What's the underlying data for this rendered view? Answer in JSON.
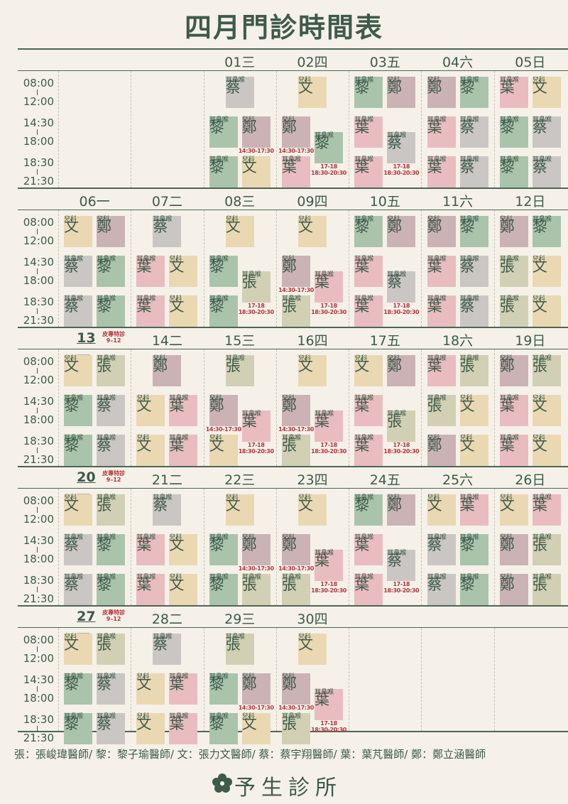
{
  "title": "四月門診時間表",
  "times": [
    "08:00",
    "12:00",
    "14:30",
    "18:00",
    "18:30",
    "21:30"
  ],
  "colors": {
    "蔡": "#c9c6c3",
    "文": "#ead8b3",
    "黎": "#a9c4ab",
    "鄭": "#cbb2b5",
    "葉": "#e9bcbf",
    "張": "#d1d0b4"
  },
  "weeks": [
    {
      "days": [
        null,
        null,
        {
          "label": "01三",
          "morning": [
            [
              "蔡",
              "耳鼻喉"
            ]
          ],
          "afternoon": [
            [
              "黎",
              "耳鼻喉"
            ],
            [
              "鄭",
              "兒科",
              "14:30-17:30"
            ]
          ],
          "evening": [
            [
              "黎",
              "耳鼻喉"
            ],
            [
              "文",
              "兒科"
            ]
          ]
        },
        {
          "label": "02四",
          "morning": [
            [
              "文",
              "兒科"
            ]
          ],
          "afternoon": [
            [
              "鄭",
              "兒科",
              "14:30-17:30"
            ]
          ],
          "span": [
            [
              "黎",
              "耳鼻喉",
              "17-18",
              "18:30-20:30"
            ]
          ],
          "evening": [
            [
              "葉",
              "耳鼻喉"
            ]
          ]
        },
        {
          "label": "03五",
          "morning": [
            [
              "黎",
              "耳鼻喉"
            ],
            [
              "鄭",
              "兒科"
            ]
          ],
          "afternoon": [
            [
              "葉",
              "耳鼻喉"
            ]
          ],
          "span": [
            [
              "蔡",
              "耳鼻喉",
              "17-18",
              "18:30-20:30"
            ]
          ],
          "evening": [
            [
              "葉",
              "耳鼻喉"
            ]
          ]
        },
        {
          "label": "04六",
          "morning": [
            [
              "鄭",
              "兒科"
            ],
            [
              "黎",
              "耳鼻喉"
            ]
          ],
          "afternoon": [
            [
              "葉",
              "耳鼻喉"
            ],
            [
              "蔡",
              "耳鼻喉"
            ]
          ],
          "evening": [
            [
              "葉",
              "耳鼻喉"
            ],
            [
              "蔡",
              "耳鼻喉"
            ]
          ]
        },
        {
          "label": "05日",
          "morning": [
            [
              "葉",
              "耳鼻喉"
            ],
            [
              "文",
              "兒科"
            ]
          ],
          "afternoon": [
            [
              "黎",
              "耳鼻喉"
            ],
            [
              "蔡",
              "耳鼻喉"
            ]
          ],
          "evening": [
            [
              "黎",
              "耳鼻喉"
            ],
            [
              "蔡",
              "耳鼻喉"
            ]
          ]
        }
      ]
    },
    {
      "days": [
        {
          "label": "06一",
          "morning": [
            [
              "文",
              "兒科"
            ],
            [
              "鄭",
              "兒科"
            ]
          ],
          "afternoon": [
            [
              "蔡",
              "耳鼻喉"
            ],
            [
              "黎",
              "耳鼻喉"
            ]
          ],
          "evening": [
            [
              "蔡",
              "耳鼻喉"
            ],
            [
              "黎",
              "耳鼻喉"
            ]
          ]
        },
        {
          "label": "07二",
          "morning": [
            [
              "蔡",
              "耳鼻喉"
            ]
          ],
          "afternoon": [
            [
              "葉",
              "耳鼻喉"
            ],
            [
              "文",
              "兒科"
            ]
          ],
          "evening": [
            [
              "葉",
              "耳鼻喉"
            ],
            [
              "文",
              "兒科"
            ]
          ]
        },
        {
          "label": "08三",
          "morning": [
            [
              "文",
              "兒科"
            ]
          ],
          "afternoon": [
            [
              "黎",
              "耳鼻喉"
            ]
          ],
          "span": [
            [
              "張",
              "耳鼻喉",
              "17-18",
              "18:30-20:30"
            ]
          ],
          "evening": [
            [
              "黎",
              "耳鼻喉"
            ]
          ]
        },
        {
          "label": "09四",
          "morning": [
            [
              "文",
              "兒科"
            ]
          ],
          "afternoon": [
            [
              "鄭",
              "兒科",
              "14:30-17:30"
            ]
          ],
          "span": [
            [
              "葉",
              "耳鼻喉",
              "17-18",
              "18:30-20:30"
            ]
          ],
          "evening": [
            [
              "張",
              "耳鼻喉"
            ]
          ]
        },
        {
          "label": "10五",
          "morning": [
            [
              "黎",
              "耳鼻喉"
            ],
            [
              "鄭",
              "兒科"
            ]
          ],
          "afternoon": [
            [
              "葉",
              "耳鼻喉"
            ]
          ],
          "span": [
            [
              "蔡",
              "耳鼻喉",
              "17-18",
              "18:30-20:30"
            ]
          ],
          "evening": [
            [
              "葉",
              "耳鼻喉"
            ]
          ]
        },
        {
          "label": "11六",
          "morning": [
            [
              "鄭",
              "兒科"
            ],
            [
              "黎",
              "耳鼻喉"
            ]
          ],
          "afternoon": [
            [
              "葉",
              "耳鼻喉"
            ],
            [
              "蔡",
              "耳鼻喉"
            ]
          ],
          "evening": [
            [
              "葉",
              "耳鼻喉"
            ],
            [
              "蔡",
              "耳鼻喉"
            ]
          ]
        },
        {
          "label": "12日",
          "morning": [
            [
              "鄭",
              "兒科"
            ],
            [
              "黎",
              "耳鼻喉"
            ]
          ],
          "afternoon": [
            [
              "張",
              "耳鼻喉"
            ],
            [
              "文",
              "兒科"
            ]
          ],
          "evening": [
            [
              "張",
              "耳鼻喉"
            ],
            [
              "文",
              "兒科"
            ]
          ]
        }
      ]
    },
    {
      "days": [
        {
          "label": "13一",
          "note": [
            "皮專特診",
            "9–12"
          ],
          "morning": [
            [
              "文",
              "兒科"
            ],
            [
              "張",
              "耳鼻喉"
            ]
          ],
          "afternoon": [
            [
              "黎",
              "耳鼻喉"
            ],
            [
              "蔡",
              "耳鼻喉"
            ]
          ],
          "evening": [
            [
              "黎",
              "耳鼻喉"
            ],
            [
              "蔡",
              "耳鼻喉"
            ]
          ]
        },
        {
          "label": "14二",
          "morning": [
            [
              "鄭",
              "兒科"
            ]
          ],
          "afternoon": [
            [
              "文",
              "兒科"
            ],
            [
              "葉",
              "耳鼻喉"
            ]
          ],
          "evening": [
            [
              "文",
              "兒科"
            ],
            [
              "葉",
              "耳鼻喉"
            ]
          ]
        },
        {
          "label": "15三",
          "morning": [
            [
              "張",
              "耳鼻喉"
            ]
          ],
          "afternoon": [
            [
              "鄭",
              "兒科",
              "14:30-17:30"
            ]
          ],
          "span": [
            [
              "葉",
              "耳鼻喉",
              "17-18",
              "18:30-20:30"
            ]
          ],
          "evening": [
            [
              "文",
              "兒科"
            ]
          ]
        },
        {
          "label": "16四",
          "morning": [
            [
              "文",
              "兒科"
            ]
          ],
          "afternoon": [
            [
              "鄭",
              "兒科",
              "14:30-17:30"
            ]
          ],
          "span": [
            [
              "葉",
              "耳鼻喉",
              "17-18",
              "18:30-20:30"
            ]
          ],
          "evening": [
            [
              "張",
              "耳鼻喉"
            ]
          ]
        },
        {
          "label": "17五",
          "morning": [
            [
              "文",
              "兒科"
            ],
            [
              "鄭",
              "兒科"
            ]
          ],
          "afternoon": [
            [
              "葉",
              "耳鼻喉"
            ]
          ],
          "span": [
            [
              "張",
              "耳鼻喉",
              "17-18",
              "18:30-20:30"
            ]
          ],
          "evening": [
            [
              "葉",
              "耳鼻喉"
            ]
          ]
        },
        {
          "label": "18六",
          "morning": [
            [
              "葉",
              "耳鼻喉"
            ],
            [
              "張",
              "耳鼻喉"
            ]
          ],
          "afternoon": [
            [
              "張",
              "耳鼻喉"
            ],
            [
              "文",
              "兒科"
            ]
          ],
          "evening": [
            [
              "鄭",
              "兒科"
            ],
            [
              "文",
              "兒科"
            ]
          ]
        },
        {
          "label": "19日",
          "morning": [
            [
              "鄭",
              "兒科"
            ],
            [
              "張",
              "耳鼻喉"
            ]
          ],
          "afternoon": [
            [
              "葉",
              "耳鼻喉"
            ],
            [
              "文",
              "兒科"
            ]
          ],
          "evening": [
            [
              "葉",
              "耳鼻喉"
            ],
            [
              "文",
              "兒科"
            ]
          ]
        }
      ]
    },
    {
      "days": [
        {
          "label": "20一",
          "note": [
            "皮專特診",
            "9–12"
          ],
          "morning": [
            [
              "文",
              "兒科"
            ],
            [
              "張",
              "耳鼻喉"
            ]
          ],
          "afternoon": [
            [
              "蔡",
              "耳鼻喉"
            ],
            [
              "黎",
              "耳鼻喉"
            ]
          ],
          "evening": [
            [
              "蔡",
              "耳鼻喉"
            ],
            [
              "黎",
              "耳鼻喉"
            ]
          ]
        },
        {
          "label": "21二",
          "morning": [
            [
              "蔡",
              "耳鼻喉"
            ]
          ],
          "afternoon": [
            [
              "葉",
              "耳鼻喉"
            ],
            [
              "文",
              "兒科"
            ]
          ],
          "evening": [
            [
              "葉",
              "耳鼻喉"
            ],
            [
              "文",
              "兒科"
            ]
          ]
        },
        {
          "label": "22三",
          "morning": [
            [
              "文",
              "兒科"
            ]
          ],
          "afternoon": [
            [
              "黎",
              "耳鼻喉"
            ],
            [
              "鄭",
              "兒科",
              "14:30-17:30"
            ]
          ],
          "evening": [
            [
              "黎",
              "耳鼻喉"
            ],
            [
              "張",
              "耳鼻喉"
            ]
          ]
        },
        {
          "label": "23四",
          "morning": [
            [
              "文",
              "兒科"
            ]
          ],
          "afternoon": [
            [
              "鄭",
              "兒科",
              "14:30-17:30"
            ]
          ],
          "span": [
            [
              "葉",
              "耳鼻喉",
              "17-18",
              "18:30-20:30"
            ]
          ],
          "evening": [
            [
              "張",
              "耳鼻喉"
            ]
          ]
        },
        {
          "label": "24五",
          "morning": [
            [
              "黎",
              "耳鼻喉"
            ],
            [
              "鄭",
              "兒科"
            ]
          ],
          "afternoon": [
            [
              "葉",
              "耳鼻喉"
            ]
          ],
          "span": [
            [
              "蔡",
              "耳鼻喉",
              "17-18",
              "18:30-20:30"
            ]
          ],
          "evening": [
            [
              "葉",
              "耳鼻喉"
            ]
          ]
        },
        {
          "label": "25六",
          "morning": [
            [
              "文",
              "兒科"
            ],
            [
              "葉",
              "耳鼻喉"
            ]
          ],
          "afternoon": [
            [
              "蔡",
              "耳鼻喉"
            ],
            [
              "黎",
              "耳鼻喉"
            ]
          ],
          "evening": [
            [
              "蔡",
              "耳鼻喉"
            ],
            [
              "黎",
              "耳鼻喉"
            ]
          ]
        },
        {
          "label": "26日",
          "morning": [
            [
              "文",
              "兒科"
            ],
            [
              "葉",
              "耳鼻喉"
            ]
          ],
          "afternoon": [
            [
              "鄭",
              "兒科"
            ],
            [
              "張",
              "耳鼻喉"
            ]
          ],
          "evening": [
            [
              "鄭",
              "兒科"
            ],
            [
              "張",
              "耳鼻喉"
            ]
          ]
        }
      ]
    },
    {
      "days": [
        {
          "label": "27一",
          "note": [
            "皮專特診",
            "9–12"
          ],
          "morning": [
            [
              "文",
              "兒科"
            ],
            [
              "張",
              "耳鼻喉"
            ]
          ],
          "afternoon": [
            [
              "黎",
              "耳鼻喉"
            ],
            [
              "蔡",
              "耳鼻喉"
            ]
          ],
          "evening": [
            [
              "黎",
              "耳鼻喉"
            ],
            [
              "蔡",
              "耳鼻喉"
            ]
          ]
        },
        {
          "label": "28二",
          "morning": [
            [
              "蔡",
              "耳鼻喉"
            ]
          ],
          "afternoon": [
            [
              "文",
              "兒科"
            ],
            [
              "葉",
              "耳鼻喉"
            ]
          ],
          "evening": [
            [
              "文",
              "兒科"
            ],
            [
              "葉",
              "耳鼻喉"
            ]
          ]
        },
        {
          "label": "29三",
          "morning": [
            [
              "張",
              "耳鼻喉"
            ]
          ],
          "afternoon": [
            [
              "黎",
              "耳鼻喉"
            ],
            [
              "鄭",
              "兒科",
              "14:30-17:30"
            ]
          ],
          "evening": [
            [
              "黎",
              "耳鼻喉"
            ],
            [
              "文",
              "兒科"
            ]
          ]
        },
        {
          "label": "30四",
          "morning": [
            [
              "文",
              "兒科"
            ]
          ],
          "afternoon": [
            [
              "鄭",
              "兒科",
              "14:30-17:30"
            ]
          ],
          "span": [
            [
              "葉",
              "耳鼻喉",
              "17-18",
              "18:30-20:30"
            ]
          ],
          "evening": [
            [
              "張",
              "耳鼻喉"
            ]
          ]
        }
      ]
    }
  ],
  "legend": "張：張峻瑋醫師/ 黎：黎子瑜醫師/ 文：張力文醫師/ 蔡：蔡宇翔醫師/ 葉：葉芃醫師/ 鄭：鄭立涵醫師",
  "clinic": "予生診所"
}
